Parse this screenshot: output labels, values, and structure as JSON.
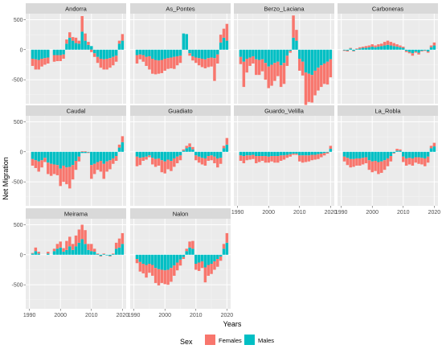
{
  "chart_data": {
    "type": "bar",
    "stacked": true,
    "facet_layout": "4 columns x 3 rows",
    "ylabel": "Net Migration",
    "xlabel": "Years",
    "years_range": [
      1990,
      2020
    ],
    "x_ticks": [
      1990,
      2000,
      2010,
      2020
    ],
    "x_tick_labels": [
      "1990",
      "2000",
      "2010",
      "2020"
    ],
    "y_ticks": [
      -500,
      0,
      500
    ],
    "y_tick_labels": [
      "-500",
      "0",
      "500"
    ],
    "ylim": [
      -900,
      600
    ],
    "grid": true,
    "legend": {
      "title": "Sex",
      "position": "bottom",
      "entries": [
        {
          "name": "Females",
          "color": "#F8766D"
        },
        {
          "name": "Males",
          "color": "#00BFC4"
        }
      ]
    },
    "facets": [
      {
        "name": "Andorra",
        "x_axis_shown": false,
        "years": [
          1991,
          1992,
          1993,
          1994,
          1995,
          1996,
          1998,
          1999,
          2000,
          2001,
          2002,
          2003,
          2004,
          2005,
          2006,
          2007,
          2008,
          2009,
          2010,
          2011,
          2012,
          2013,
          2014,
          2015,
          2016,
          2017,
          2018,
          2019,
          2020
        ],
        "males": [
          -150,
          -160,
          -170,
          -150,
          -140,
          -130,
          -90,
          -90,
          -90,
          -80,
          100,
          200,
          150,
          110,
          100,
          300,
          150,
          80,
          60,
          -60,
          -120,
          -150,
          -160,
          -150,
          -140,
          -120,
          -100,
          100,
          150
        ],
        "females": [
          -120,
          -170,
          -160,
          -130,
          -110,
          -100,
          -110,
          -100,
          -100,
          -70,
          70,
          90,
          60,
          90,
          50,
          260,
          120,
          50,
          -40,
          -60,
          -100,
          -150,
          -170,
          -180,
          -160,
          -140,
          -100,
          50,
          110
        ]
      },
      {
        "name": "As_Pontes",
        "x_axis_shown": false,
        "years": [
          1991,
          1992,
          1993,
          1994,
          1995,
          1996,
          1997,
          1998,
          1999,
          2000,
          2001,
          2002,
          2003,
          2004,
          2005,
          2006,
          2007,
          2008,
          2009,
          2010,
          2011,
          2012,
          2013,
          2014,
          2015,
          2016,
          2017,
          2018,
          2019,
          2020
        ],
        "males": [
          -90,
          -80,
          -90,
          -120,
          -110,
          -150,
          -170,
          -180,
          -170,
          -150,
          -140,
          -130,
          -120,
          -110,
          -100,
          270,
          260,
          -60,
          -110,
          -130,
          -140,
          -150,
          -160,
          -140,
          -130,
          -140,
          -80,
          120,
          200,
          150
        ],
        "females": [
          -140,
          -80,
          -110,
          -150,
          -220,
          -250,
          -240,
          -220,
          -220,
          -200,
          -180,
          -180,
          -200,
          -150,
          -120,
          0,
          0,
          -40,
          -70,
          -90,
          -120,
          -140,
          -150,
          -150,
          -150,
          -380,
          -150,
          130,
          150,
          280
        ]
      },
      {
        "name": "Berzo_Laciana",
        "x_axis_shown": false,
        "years": [
          1991,
          1992,
          1993,
          1994,
          1995,
          1996,
          1997,
          1998,
          1999,
          2000,
          2001,
          2002,
          2003,
          2004,
          2005,
          2006,
          2007,
          2008,
          2009,
          2010,
          2011,
          2012,
          2013,
          2014,
          2015,
          2016,
          2017,
          2018,
          2019,
          2020
        ],
        "males": [
          -120,
          -200,
          -150,
          -130,
          -110,
          -160,
          -170,
          -160,
          -220,
          -280,
          -250,
          -220,
          -200,
          -260,
          -220,
          -100,
          -20,
          200,
          150,
          -150,
          -200,
          -380,
          -400,
          -420,
          -350,
          -300,
          -260,
          -230,
          -200,
          -160
        ],
        "females": [
          -120,
          -420,
          -230,
          -140,
          -120,
          -260,
          -250,
          -200,
          -280,
          -360,
          -350,
          -300,
          -240,
          -360,
          -350,
          -170,
          -30,
          370,
          180,
          -200,
          -230,
          -540,
          -470,
          -460,
          -410,
          -380,
          -360,
          -340,
          -380,
          -300
        ]
      },
      {
        "name": "Carboneras",
        "x_axis_shown": false,
        "years": [
          1991,
          1992,
          1993,
          1994,
          1995,
          1996,
          1997,
          1998,
          1999,
          2000,
          2001,
          2002,
          2003,
          2004,
          2005,
          2006,
          2007,
          2008,
          2009,
          2010,
          2011,
          2012,
          2013,
          2014,
          2015,
          2016,
          2017,
          2018,
          2019,
          2020
        ],
        "males": [
          -10,
          -15,
          20,
          -20,
          10,
          20,
          30,
          30,
          40,
          50,
          40,
          50,
          60,
          70,
          80,
          70,
          60,
          50,
          40,
          30,
          -20,
          -40,
          -60,
          -30,
          -50,
          -20,
          -10,
          -30,
          40,
          70
        ],
        "females": [
          -10,
          -15,
          10,
          -10,
          10,
          20,
          20,
          30,
          30,
          40,
          30,
          40,
          40,
          60,
          70,
          60,
          50,
          40,
          30,
          20,
          -20,
          -20,
          -40,
          -20,
          -30,
          -10,
          -10,
          -20,
          30,
          50
        ]
      },
      {
        "name": "Caudal",
        "x_axis_shown": false,
        "years": [
          1991,
          1992,
          1993,
          1994,
          1995,
          1996,
          1997,
          1998,
          1999,
          2000,
          2001,
          2002,
          2003,
          2004,
          2005,
          2006,
          2007,
          2008,
          2009,
          2010,
          2011,
          2012,
          2013,
          2014,
          2015,
          2016,
          2017,
          2018,
          2019,
          2020
        ],
        "males": [
          -120,
          -140,
          -160,
          -140,
          -100,
          -180,
          -200,
          -210,
          -220,
          -280,
          -230,
          -260,
          -250,
          -220,
          -150,
          -80,
          -20,
          -20,
          -10,
          -220,
          -200,
          -170,
          -150,
          -200,
          -160,
          -140,
          -110,
          -70,
          70,
          160
        ],
        "females": [
          -110,
          -130,
          -170,
          -120,
          -70,
          -190,
          -200,
          -160,
          -170,
          -290,
          -270,
          -280,
          -360,
          -240,
          -150,
          -80,
          10,
          10,
          -10,
          -230,
          -170,
          -130,
          -180,
          -250,
          -170,
          -150,
          -90,
          -80,
          50,
          100
        ]
      },
      {
        "name": "Guadiato",
        "x_axis_shown": false,
        "years": [
          1991,
          1992,
          1993,
          1994,
          1995,
          1996,
          1997,
          1998,
          1999,
          2000,
          2001,
          2002,
          2003,
          2004,
          2005,
          2006,
          2007,
          2008,
          2009,
          2010,
          2011,
          2012,
          2013,
          2014,
          2015,
          2016,
          2017,
          2018,
          2019,
          2020
        ],
        "males": [
          -80,
          -100,
          -90,
          -80,
          -60,
          -100,
          -120,
          -110,
          -140,
          -160,
          -130,
          -150,
          -110,
          -80,
          -60,
          20,
          60,
          80,
          40,
          -60,
          -80,
          -100,
          -110,
          -70,
          -60,
          -80,
          -110,
          -100,
          60,
          120
        ],
        "females": [
          -160,
          -120,
          -60,
          -50,
          -30,
          -110,
          -130,
          -120,
          -200,
          -200,
          -160,
          -170,
          -140,
          -110,
          -80,
          20,
          40,
          60,
          40,
          -80,
          -100,
          -110,
          -120,
          -80,
          -80,
          -110,
          -150,
          -100,
          40,
          110
        ]
      },
      {
        "name": "Guardo_Velilla",
        "x_axis_shown": true,
        "years": [
          1991,
          1992,
          1993,
          1994,
          1995,
          1996,
          1997,
          1998,
          1999,
          2000,
          2001,
          2002,
          2003,
          2004,
          2005,
          2006,
          2007,
          2008,
          2009,
          2010,
          2011,
          2012,
          2013,
          2014,
          2015,
          2016,
          2017,
          2018,
          2019,
          2020
        ],
        "males": [
          -60,
          -70,
          -60,
          -60,
          -50,
          -70,
          -70,
          -70,
          -70,
          -80,
          -70,
          -70,
          -70,
          -60,
          -60,
          -50,
          -40,
          -30,
          -30,
          -60,
          -60,
          -60,
          -60,
          -50,
          -50,
          -40,
          -30,
          -20,
          -10,
          50
        ],
        "females": [
          -90,
          -120,
          -80,
          -70,
          -70,
          -120,
          -100,
          -80,
          -110,
          -100,
          -90,
          -110,
          -110,
          -90,
          -70,
          -50,
          -40,
          -20,
          -20,
          -100,
          -120,
          -110,
          -100,
          -90,
          -80,
          -80,
          -60,
          -40,
          -20,
          50
        ]
      },
      {
        "name": "La_Robla",
        "x_axis_shown": true,
        "years": [
          1991,
          1992,
          1993,
          1994,
          1995,
          1996,
          1997,
          1998,
          1999,
          2000,
          2001,
          2002,
          2003,
          2004,
          2005,
          2006,
          2007,
          2008,
          2009,
          2010,
          2011,
          2012,
          2013,
          2014,
          2015,
          2016,
          2017,
          2018,
          2019,
          2020
        ],
        "males": [
          -80,
          -100,
          -120,
          -120,
          -110,
          -110,
          -100,
          -90,
          -140,
          -160,
          -150,
          -170,
          -160,
          -140,
          -110,
          -70,
          -20,
          20,
          20,
          -80,
          -110,
          -100,
          -110,
          -90,
          -90,
          -100,
          -110,
          -80,
          60,
          90
        ],
        "females": [
          -80,
          -120,
          -140,
          -130,
          -120,
          -120,
          -110,
          -100,
          -160,
          -180,
          -170,
          -200,
          -190,
          -160,
          -130,
          -90,
          -10,
          30,
          20,
          -90,
          -120,
          -110,
          -120,
          -90,
          -110,
          -110,
          -130,
          -100,
          40,
          60
        ]
      },
      {
        "name": "Meirama",
        "x_axis_shown": true,
        "years": [
          1991,
          1992,
          1993,
          1994,
          1996,
          1998,
          1999,
          2000,
          2001,
          2002,
          2003,
          2004,
          2005,
          2006,
          2007,
          2008,
          2009,
          2010,
          2011,
          2012,
          2013,
          2014,
          2015,
          2016,
          2017,
          2018,
          2019,
          2020
        ],
        "males": [
          20,
          60,
          20,
          0,
          20,
          60,
          100,
          120,
          50,
          80,
          140,
          80,
          140,
          200,
          260,
          180,
          80,
          60,
          50,
          10,
          -20,
          10,
          -10,
          -20,
          10,
          100,
          120,
          180
        ],
        "females": [
          10,
          60,
          30,
          0,
          30,
          40,
          80,
          100,
          60,
          150,
          160,
          100,
          180,
          220,
          240,
          230,
          100,
          120,
          50,
          10,
          -10,
          10,
          0,
          -10,
          10,
          100,
          150,
          180
        ]
      },
      {
        "name": "Nalon",
        "x_axis_shown": true,
        "years": [
          1991,
          1992,
          1993,
          1994,
          1995,
          1996,
          1997,
          1998,
          1999,
          2000,
          2001,
          2002,
          2003,
          2004,
          2005,
          2006,
          2007,
          2008,
          2009,
          2010,
          2011,
          2012,
          2013,
          2014,
          2015,
          2016,
          2017,
          2018,
          2019,
          2020
        ],
        "males": [
          -70,
          -120,
          -150,
          -170,
          -150,
          -170,
          -220,
          -240,
          -250,
          -260,
          -250,
          -220,
          -180,
          -130,
          -80,
          -40,
          60,
          120,
          100,
          -150,
          -130,
          -110,
          -210,
          -170,
          -150,
          -110,
          -70,
          -30,
          100,
          200
        ],
        "females": [
          -70,
          -160,
          -160,
          -210,
          -150,
          -180,
          -250,
          -270,
          -220,
          -230,
          -250,
          -230,
          -170,
          -130,
          -100,
          -30,
          40,
          100,
          130,
          -100,
          -140,
          -110,
          -250,
          -180,
          -170,
          -140,
          -130,
          -70,
          80,
          160
        ]
      }
    ]
  }
}
